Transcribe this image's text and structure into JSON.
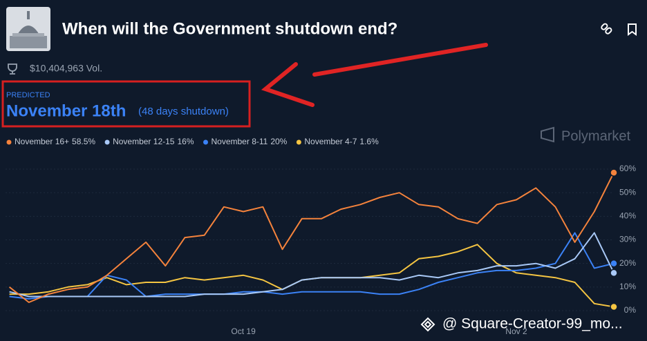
{
  "header": {
    "title": "When will the Government shutdown end?",
    "volume": "$10,404,963 Vol.",
    "predicted_label": "PREDICTED",
    "predicted_value": "November 18th",
    "predicted_note": "(48 days shutdown)",
    "brand": "Polymarket",
    "watermark": "@ Square-Creator-99_mo..."
  },
  "chart_data": {
    "type": "line",
    "categories": [
      null,
      null,
      null,
      null,
      null,
      null,
      null,
      null,
      null,
      null,
      null,
      null,
      "Oct 19",
      null,
      null,
      null,
      null,
      null,
      null,
      null,
      null,
      null,
      null,
      null,
      null,
      null,
      "Nov 2",
      null,
      null,
      null,
      null,
      null
    ],
    "series": [
      {
        "name": "November 16+",
        "legend_value": "58.5%",
        "color": "#f5833c",
        "values": [
          10,
          3.5,
          7,
          9,
          10,
          15,
          22,
          29,
          19,
          31,
          32,
          44,
          42,
          44,
          26,
          39,
          39,
          43,
          45,
          48,
          50,
          45,
          44,
          39,
          37,
          45,
          47,
          52,
          44,
          29,
          42,
          58.5
        ]
      },
      {
        "name": "November 12-15",
        "legend_value": "16%",
        "color": "#a9c9f7",
        "values": [
          8,
          6,
          6,
          6,
          6,
          6,
          6,
          6,
          6,
          6,
          7,
          7,
          7,
          8,
          9,
          13,
          14,
          14,
          14,
          14,
          13,
          15,
          14,
          16,
          17,
          19,
          19,
          20,
          18,
          22,
          33,
          16
        ]
      },
      {
        "name": "November 8-11",
        "legend_value": "20%",
        "color": "#3b82f6",
        "values": [
          6,
          5,
          6,
          6,
          6,
          15,
          13,
          6,
          7,
          7,
          7,
          7,
          8,
          8,
          7,
          8,
          8,
          8,
          8,
          7,
          7,
          9,
          12,
          14,
          16,
          17,
          17,
          18,
          20,
          33,
          18,
          20
        ]
      },
      {
        "name": "November 4-7",
        "legend_value": "1.6%",
        "color": "#f5c542",
        "values": [
          7,
          7,
          8,
          10,
          11,
          14,
          11,
          12,
          12,
          14,
          13,
          14,
          15,
          13,
          9,
          13,
          14,
          14,
          14,
          15,
          16,
          22,
          23,
          25,
          28,
          20,
          16,
          15,
          14,
          12,
          3,
          1.6
        ]
      }
    ],
    "ylim": [
      0,
      60
    ],
    "yticks": [
      {
        "value": 0,
        "label": "0%"
      },
      {
        "value": 10,
        "label": "10%"
      },
      {
        "value": 20,
        "label": "20%"
      },
      {
        "value": 30,
        "label": "30%"
      },
      {
        "value": 40,
        "label": "40%"
      },
      {
        "value": 50,
        "label": "50%"
      },
      {
        "value": 60,
        "label": "60%"
      }
    ],
    "grid": true
  }
}
